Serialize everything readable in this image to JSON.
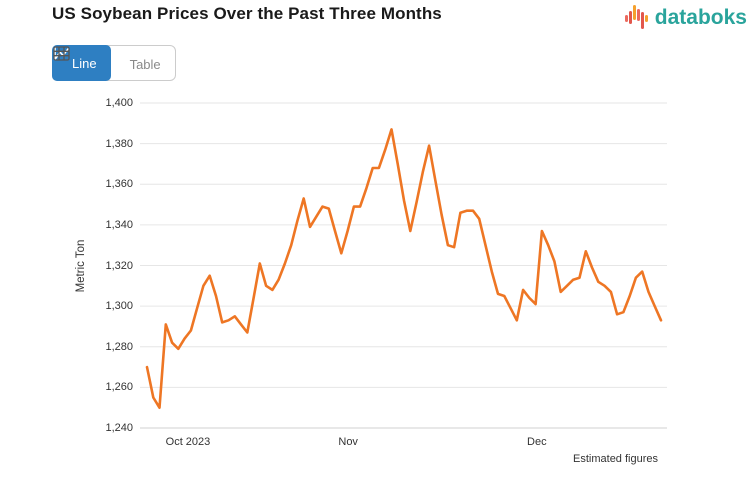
{
  "header": {
    "title": "US Soybean Prices Over the Past Three Months",
    "brand": "databoks"
  },
  "toolbar": {
    "line_label": "Line",
    "table_label": "Table"
  },
  "footnote": "Estimated figures",
  "colors": {
    "accent_blue": "#2E7FC2",
    "line_orange": "#EE7624",
    "brand_teal": "#2AA49C",
    "grid": "#E6E6E6",
    "axis_line": "#D0D0D0",
    "logo_red": "#E2574C",
    "logo_salmon": "#EC6A5E",
    "logo_orange": "#F5A12E"
  },
  "chart_data": {
    "type": "line",
    "title": "US Soybean Prices Over the Past Three Months",
    "xlabel": "",
    "ylabel": "Metric Ton",
    "ylim": [
      1240,
      1400
    ],
    "ytick_step": 20,
    "grid": true,
    "legend": "none",
    "x_period": "daily, late Sep 2023 - late Dec 2023",
    "xticks": [
      {
        "label": "Oct 2023",
        "pos": 0.091
      },
      {
        "label": "Nov",
        "pos": 0.395
      },
      {
        "label": "Dec",
        "pos": 0.753
      }
    ],
    "series": [
      {
        "name": "US Soybean Price (Metric Ton)",
        "values": [
          1270,
          1255,
          1250,
          1291,
          1282,
          1279,
          1284,
          1288,
          1299,
          1310,
          1315,
          1305,
          1292,
          1293,
          1295,
          1291,
          1287,
          1304,
          1321,
          1310,
          1308,
          1313,
          1321,
          1330,
          1342,
          1353,
          1339,
          1344,
          1349,
          1348,
          1337,
          1326,
          1337,
          1349,
          1349,
          1358,
          1368,
          1368,
          1377,
          1387,
          1370,
          1352,
          1337,
          1351,
          1366,
          1379,
          1362,
          1345,
          1330,
          1329,
          1346,
          1347,
          1347,
          1343,
          1330,
          1317,
          1306,
          1305,
          1299,
          1293,
          1308,
          1304,
          1301,
          1337,
          1330,
          1322,
          1307,
          1310,
          1313,
          1314,
          1327,
          1319,
          1312,
          1310,
          1307,
          1296,
          1297,
          1305,
          1314,
          1317,
          1307,
          1300,
          1293
        ]
      }
    ],
    "footnote": "Estimated figures"
  }
}
